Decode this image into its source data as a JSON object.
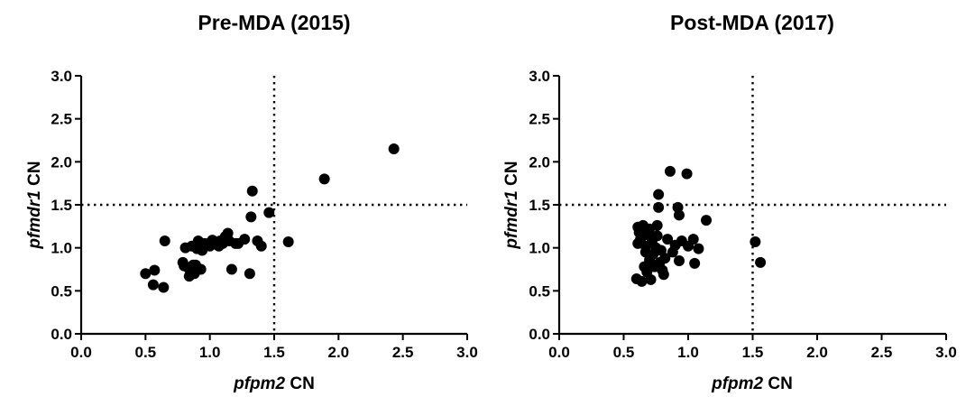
{
  "colors": {
    "marker": "#000000",
    "axis": "#000000",
    "background": "#ffffff"
  },
  "chart_data": [
    {
      "type": "scatter",
      "title": "Pre-MDA (2015)",
      "xlabel": {
        "gene": "pfpm2",
        "unit": "CN"
      },
      "ylabel": {
        "gene": "pfmdr1",
        "unit": "CN"
      },
      "xlim": [
        0,
        3.0
      ],
      "ylim": [
        0,
        3.0
      ],
      "x_ticks": [
        "0.0",
        "0.5",
        "1.0",
        "1.5",
        "2.0",
        "2.5",
        "3.0"
      ],
      "y_ticks": [
        "0.0",
        "0.5",
        "1.0",
        "1.5",
        "2.0",
        "2.5",
        "3.0"
      ],
      "reference_lines": {
        "x": 1.5,
        "y": 1.5,
        "style": "dotted"
      },
      "grid": false,
      "legend": "none",
      "points": [
        [
          0.5,
          0.7
        ],
        [
          0.56,
          0.57
        ],
        [
          0.57,
          0.74
        ],
        [
          0.64,
          0.54
        ],
        [
          0.65,
          1.08
        ],
        [
          0.79,
          0.83
        ],
        [
          0.8,
          0.79
        ],
        [
          0.81,
          1.0
        ],
        [
          0.83,
          0.77
        ],
        [
          0.84,
          0.67
        ],
        [
          0.85,
          0.73
        ],
        [
          0.86,
          1.02
        ],
        [
          0.87,
          0.8
        ],
        [
          0.88,
          0.7
        ],
        [
          0.89,
          0.8
        ],
        [
          0.9,
          0.99
        ],
        [
          0.91,
          1.08
        ],
        [
          0.93,
          0.75
        ],
        [
          0.94,
          0.97
        ],
        [
          0.96,
          1.05
        ],
        [
          0.99,
          1.05
        ],
        [
          1.0,
          1.02
        ],
        [
          1.02,
          1.09
        ],
        [
          1.05,
          1.04
        ],
        [
          1.07,
          1.02
        ],
        [
          1.08,
          1.08
        ],
        [
          1.1,
          1.05
        ],
        [
          1.12,
          1.13
        ],
        [
          1.14,
          1.17
        ],
        [
          1.15,
          1.08
        ],
        [
          1.17,
          0.75
        ],
        [
          1.2,
          1.05
        ],
        [
          1.22,
          1.05
        ],
        [
          1.27,
          1.1
        ],
        [
          1.31,
          0.7
        ],
        [
          1.32,
          1.36
        ],
        [
          1.33,
          1.66
        ],
        [
          1.37,
          1.08
        ],
        [
          1.4,
          1.02
        ],
        [
          1.46,
          1.41
        ],
        [
          1.61,
          1.07
        ],
        [
          1.89,
          1.8
        ],
        [
          2.43,
          2.15
        ]
      ]
    },
    {
      "type": "scatter",
      "title": "Post-MDA (2017)",
      "xlabel": {
        "gene": "pfpm2",
        "unit": "CN"
      },
      "ylabel": {
        "gene": "pfmdr1",
        "unit": "CN"
      },
      "xlim": [
        0,
        3.0
      ],
      "ylim": [
        0,
        3.0
      ],
      "x_ticks": [
        "0.0",
        "0.5",
        "1.0",
        "1.5",
        "2.0",
        "2.5",
        "3.0"
      ],
      "y_ticks": [
        "0.0",
        "0.5",
        "1.0",
        "1.5",
        "2.0",
        "2.5",
        "3.0"
      ],
      "reference_lines": {
        "x": 1.5,
        "y": 1.5,
        "style": "dotted"
      },
      "grid": false,
      "legend": "none",
      "points": [
        [
          0.6,
          0.64
        ],
        [
          0.61,
          1.05
        ],
        [
          0.61,
          1.24
        ],
        [
          0.62,
          1.18
        ],
        [
          0.63,
          1.1
        ],
        [
          0.64,
          0.61
        ],
        [
          0.65,
          1.26
        ],
        [
          0.66,
          0.78
        ],
        [
          0.67,
          1.02
        ],
        [
          0.67,
          0.95
        ],
        [
          0.68,
          0.72
        ],
        [
          0.69,
          1.15
        ],
        [
          0.7,
          0.86
        ],
        [
          0.7,
          1.22
        ],
        [
          0.71,
          0.63
        ],
        [
          0.72,
          1.08
        ],
        [
          0.73,
          0.93
        ],
        [
          0.74,
          0.78
        ],
        [
          0.75,
          1.0
        ],
        [
          0.76,
          1.14
        ],
        [
          0.76,
          1.26
        ],
        [
          0.77,
          1.47
        ],
        [
          0.77,
          1.62
        ],
        [
          0.78,
          0.83
        ],
        [
          0.79,
          0.97
        ],
        [
          0.8,
          0.74
        ],
        [
          0.81,
          0.69
        ],
        [
          0.82,
          0.88
        ],
        [
          0.84,
          1.1
        ],
        [
          0.86,
          1.89
        ],
        [
          0.88,
          0.95
        ],
        [
          0.9,
          1.03
        ],
        [
          0.92,
          1.47
        ],
        [
          0.93,
          1.38
        ],
        [
          0.93,
          0.85
        ],
        [
          0.95,
          1.08
        ],
        [
          0.99,
          1.86
        ],
        [
          1.0,
          1.02
        ],
        [
          1.05,
          0.82
        ],
        [
          1.04,
          1.1
        ],
        [
          1.08,
          0.99
        ],
        [
          1.14,
          1.32
        ],
        [
          1.52,
          1.07
        ],
        [
          1.56,
          0.83
        ]
      ]
    }
  ]
}
